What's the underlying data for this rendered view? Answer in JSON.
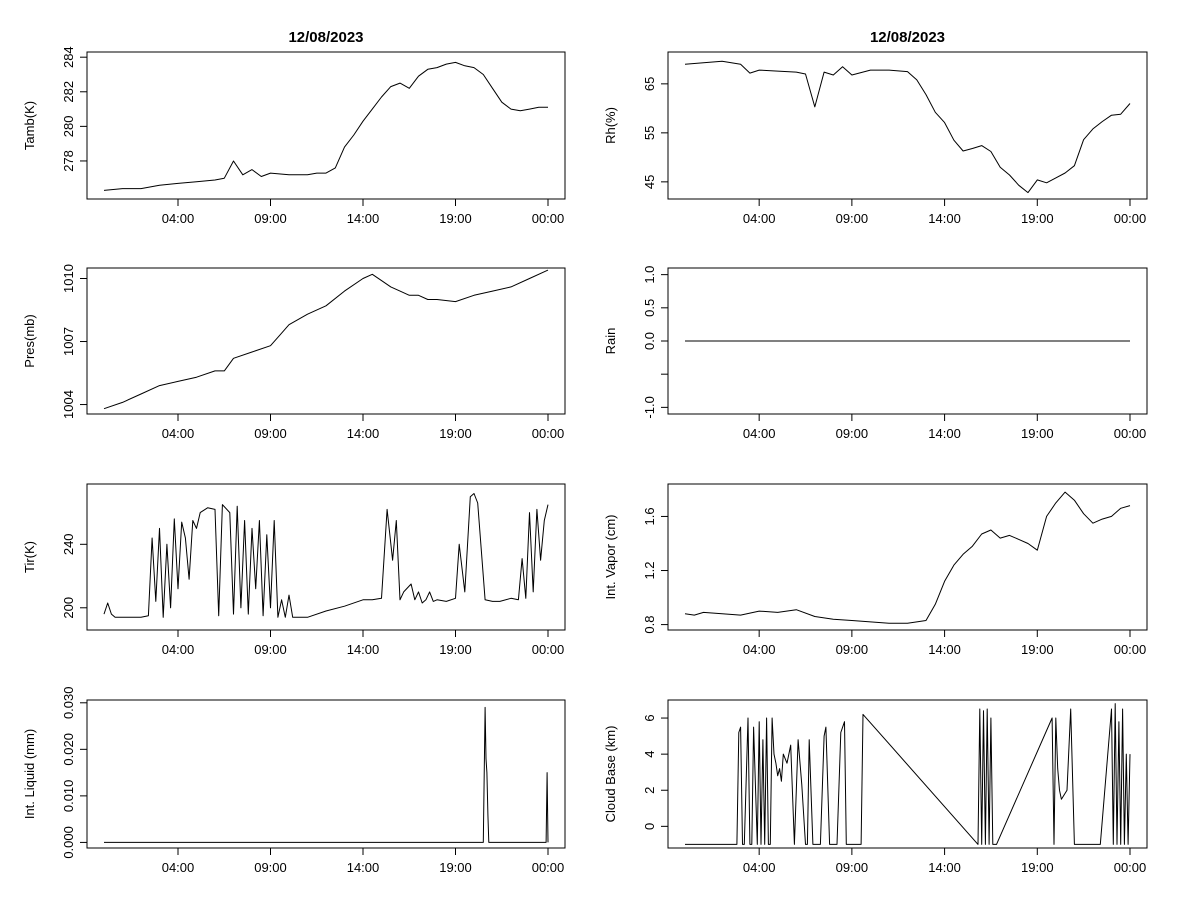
{
  "chart_data": [
    {
      "id": "tamb",
      "type": "line",
      "title": "12/08/2023",
      "ylabel": "Tamb(K)",
      "xlabel": "",
      "xlim": [
        0,
        24
      ],
      "ylim": [
        275.8,
        284.3
      ],
      "x_ticks": [
        4,
        9,
        14,
        19,
        24
      ],
      "x_tick_labels": [
        "04:00",
        "09:00",
        "14:00",
        "19:00",
        "00:00"
      ],
      "y_ticks": [
        278,
        280,
        282,
        284
      ],
      "y_tick_labels": [
        "278",
        "280",
        "282",
        "284"
      ],
      "series": [
        {
          "name": "Tamb",
          "x": [
            0,
            1,
            2,
            3,
            4,
            5,
            6,
            6.5,
            7,
            7.5,
            8,
            8.5,
            9,
            10,
            11,
            11.5,
            12,
            12.5,
            13,
            13.5,
            14,
            14.5,
            15,
            15.5,
            16,
            16.5,
            17,
            17.5,
            18,
            18.5,
            19,
            19.5,
            20,
            20.5,
            21,
            21.5,
            22,
            22.5,
            23,
            23.5,
            24
          ],
          "y": [
            276.3,
            276.4,
            276.4,
            276.6,
            276.7,
            276.8,
            276.9,
            277.0,
            278.0,
            277.2,
            277.5,
            277.1,
            277.3,
            277.2,
            277.2,
            277.3,
            277.3,
            277.6,
            278.8,
            279.5,
            280.3,
            281.0,
            281.7,
            282.3,
            282.5,
            282.2,
            282.9,
            283.3,
            283.4,
            283.6,
            283.7,
            283.5,
            283.4,
            283.0,
            282.2,
            281.4,
            281.0,
            280.9,
            281.0,
            281.1,
            281.1
          ]
        }
      ]
    },
    {
      "id": "rh",
      "type": "line",
      "title": "12/08/2023",
      "ylabel": "Rh(%)",
      "xlabel": "",
      "xlim": [
        0,
        24
      ],
      "ylim": [
        41.5,
        71.5
      ],
      "x_ticks": [
        4,
        9,
        14,
        19,
        24
      ],
      "x_tick_labels": [
        "04:00",
        "09:00",
        "14:00",
        "19:00",
        "00:00"
      ],
      "y_ticks": [
        45,
        55,
        65
      ],
      "y_tick_labels": [
        "45",
        "55",
        "65"
      ],
      "series": [
        {
          "name": "Rh",
          "x": [
            0,
            1,
            2,
            3,
            3.5,
            4,
            5,
            6,
            6.5,
            7,
            7.5,
            8,
            8.5,
            9,
            10,
            11,
            12,
            12.5,
            13,
            13.5,
            14,
            14.5,
            15,
            15.5,
            16,
            16.5,
            17,
            17.5,
            18,
            18.5,
            19,
            19.5,
            20,
            20.5,
            21,
            21.5,
            22,
            22.5,
            23,
            23.5,
            24
          ],
          "y": [
            69.0,
            69.3,
            69.6,
            69.0,
            67.2,
            67.8,
            67.6,
            67.4,
            67.0,
            60.3,
            67.4,
            66.8,
            68.5,
            66.8,
            67.8,
            67.8,
            67.5,
            65.8,
            62.8,
            59.2,
            57.1,
            53.5,
            51.3,
            51.8,
            52.4,
            51.2,
            48.0,
            46.4,
            44.3,
            42.8,
            45.4,
            44.8,
            45.8,
            46.8,
            48.3,
            53.6,
            55.8,
            57.3,
            58.6,
            58.8,
            61.0
          ]
        }
      ]
    },
    {
      "id": "pres",
      "type": "line",
      "title": "",
      "ylabel": "Pres(mb)",
      "xlabel": "",
      "xlim": [
        0,
        24
      ],
      "ylim": [
        1003.55,
        1010.5
      ],
      "x_ticks": [
        4,
        9,
        14,
        19,
        24
      ],
      "x_tick_labels": [
        "04:00",
        "09:00",
        "14:00",
        "19:00",
        "00:00"
      ],
      "y_ticks": [
        1004,
        1007,
        1010
      ],
      "y_tick_labels": [
        "1004",
        "1007",
        "1010"
      ],
      "series": [
        {
          "name": "Pres",
          "x": [
            0,
            1,
            2,
            3,
            4,
            5,
            6,
            6.5,
            7,
            8,
            9,
            9.5,
            10,
            11,
            12,
            13,
            14,
            14.5,
            15,
            15.5,
            16,
            16.5,
            17,
            17.5,
            18,
            19,
            20,
            21,
            22,
            23,
            24
          ],
          "y": [
            1003.8,
            1004.1,
            1004.5,
            1004.9,
            1005.1,
            1005.3,
            1005.6,
            1005.6,
            1006.2,
            1006.5,
            1006.8,
            1007.3,
            1007.8,
            1008.3,
            1008.7,
            1009.4,
            1010.0,
            1010.2,
            1009.9,
            1009.6,
            1009.4,
            1009.2,
            1009.2,
            1009.0,
            1009.0,
            1008.9,
            1009.2,
            1009.4,
            1009.6,
            1010.0,
            1010.4
          ]
        }
      ]
    },
    {
      "id": "rain",
      "type": "line",
      "title": "",
      "ylabel": "Rain",
      "xlabel": "",
      "xlim": [
        0,
        24
      ],
      "ylim": [
        -1.1,
        1.1
      ],
      "x_ticks": [
        4,
        9,
        14,
        19,
        24
      ],
      "x_tick_labels": [
        "04:00",
        "09:00",
        "14:00",
        "19:00",
        "00:00"
      ],
      "y_ticks": [
        -1.0,
        -0.5,
        0.0,
        0.5,
        1.0
      ],
      "y_tick_labels": [
        "-1.0",
        "",
        "0.0",
        "0.5",
        "1.0"
      ],
      "series": [
        {
          "name": "Rain",
          "x": [
            0,
            24
          ],
          "y": [
            0,
            0
          ]
        }
      ]
    },
    {
      "id": "tir",
      "type": "line",
      "title": "",
      "ylabel": "Tir(K)",
      "xlabel": "",
      "xlim": [
        0,
        24
      ],
      "ylim": [
        186,
        278
      ],
      "x_ticks": [
        4,
        9,
        14,
        19,
        24
      ],
      "x_tick_labels": [
        "04:00",
        "09:00",
        "14:00",
        "19:00",
        "00:00"
      ],
      "y_ticks": [
        200,
        240
      ],
      "y_tick_labels": [
        "200",
        "240"
      ],
      "series": [
        {
          "name": "Tir",
          "x": [
            0,
            0.2,
            0.4,
            0.6,
            1,
            2,
            2.4,
            2.6,
            2.8,
            3.0,
            3.2,
            3.4,
            3.6,
            3.8,
            4.0,
            4.2,
            4.4,
            4.6,
            4.8,
            5.0,
            5.2,
            5.6,
            6.0,
            6.2,
            6.4,
            6.8,
            7.0,
            7.2,
            7.4,
            7.6,
            7.8,
            8.0,
            8.2,
            8.4,
            8.6,
            8.8,
            9.0,
            9.2,
            9.4,
            9.6,
            9.8,
            10.0,
            10.2,
            10.6,
            11,
            12,
            13,
            14,
            14.5,
            15,
            15.3,
            15.6,
            15.8,
            16.0,
            16.2,
            16.6,
            16.8,
            17.0,
            17.2,
            17.4,
            17.6,
            17.8,
            18,
            18.5,
            19,
            19.2,
            19.5,
            19.8,
            20,
            20.2,
            20.6,
            21,
            21.4,
            22,
            22.4,
            22.6,
            22.8,
            23.0,
            23.2,
            23.4,
            23.6,
            23.8,
            24
          ],
          "y": [
            196,
            203,
            196,
            194,
            194,
            194,
            195,
            244,
            204,
            250,
            194,
            240,
            200,
            256,
            212,
            254,
            244,
            218,
            255,
            250,
            260,
            263,
            262,
            195,
            265,
            260,
            196,
            264,
            200,
            255,
            196,
            250,
            212,
            255,
            195,
            246,
            200,
            255,
            194,
            205,
            194,
            208,
            194,
            194,
            194,
            198,
            201,
            205,
            205,
            206,
            262,
            230,
            255,
            205,
            210,
            215,
            205,
            210,
            203,
            205,
            210,
            204,
            205,
            204,
            206,
            240,
            210,
            270,
            272,
            266,
            205,
            204,
            204,
            206,
            205,
            231,
            206,
            260,
            210,
            262,
            230,
            255,
            265
          ]
        }
      ]
    },
    {
      "id": "vapor",
      "type": "line",
      "title": "",
      "ylabel": "Int. Vapor (cm)",
      "xlabel": "",
      "xlim": [
        0,
        24
      ],
      "ylim": [
        0.76,
        1.84
      ],
      "x_ticks": [
        4,
        9,
        14,
        19,
        24
      ],
      "x_tick_labels": [
        "04:00",
        "09:00",
        "14:00",
        "19:00",
        "00:00"
      ],
      "y_ticks": [
        0.8,
        1.2,
        1.6
      ],
      "y_tick_labels": [
        "0.8",
        "1.2",
        "1.6"
      ],
      "series": [
        {
          "name": "Int. Vapor",
          "x": [
            0,
            0.5,
            1,
            2,
            3,
            4,
            5,
            6,
            7,
            8,
            9,
            10,
            11,
            12,
            12.5,
            13,
            13.5,
            14,
            14.5,
            15,
            15.5,
            16,
            16.5,
            17,
            17.5,
            18,
            18.5,
            19,
            19.5,
            20,
            20.5,
            21,
            21.5,
            22,
            22.5,
            23,
            23.5,
            24
          ],
          "y": [
            0.88,
            0.87,
            0.89,
            0.88,
            0.87,
            0.9,
            0.89,
            0.91,
            0.86,
            0.84,
            0.83,
            0.82,
            0.81,
            0.81,
            0.82,
            0.83,
            0.95,
            1.12,
            1.24,
            1.32,
            1.38,
            1.47,
            1.5,
            1.44,
            1.46,
            1.43,
            1.4,
            1.35,
            1.6,
            1.7,
            1.78,
            1.72,
            1.62,
            1.55,
            1.58,
            1.6,
            1.66,
            1.68
          ]
        }
      ]
    },
    {
      "id": "liquid",
      "type": "line",
      "title": "",
      "ylabel": "Int. Liquid (mm)",
      "xlabel": "",
      "xlim": [
        0,
        24
      ],
      "ylim": [
        -0.0012,
        0.0306
      ],
      "x_ticks": [
        4,
        9,
        14,
        19,
        24
      ],
      "x_tick_labels": [
        "04:00",
        "09:00",
        "14:00",
        "19:00",
        "00:00"
      ],
      "y_ticks": [
        0.0,
        0.01,
        0.02,
        0.03
      ],
      "y_tick_labels": [
        "0.000",
        "0.010",
        "0.020",
        "0.030"
      ],
      "series": [
        {
          "name": "Int. Liquid",
          "x": [
            0,
            20.5,
            20.6,
            20.65,
            20.7,
            20.75,
            20.8,
            21,
            23.9,
            23.95,
            24
          ],
          "y": [
            0,
            0,
            0.029,
            0.018,
            0.015,
            0.006,
            0,
            0,
            0,
            0.015,
            0
          ]
        }
      ]
    },
    {
      "id": "cloudbase",
      "type": "line",
      "title": "",
      "ylabel": "Cloud Base (km)",
      "xlabel": "",
      "xlim": [
        0,
        24
      ],
      "ylim": [
        -1.2,
        7.0
      ],
      "x_ticks": [
        4,
        9,
        14,
        19,
        24
      ],
      "x_tick_labels": [
        "04:00",
        "09:00",
        "14:00",
        "19:00",
        "00:00"
      ],
      "y_ticks": [
        0,
        2,
        4,
        6
      ],
      "y_tick_labels": [
        "0",
        "2",
        "4",
        "6"
      ],
      "series": [
        {
          "name": "Cloud Base",
          "x": [
            0,
            2.8,
            2.9,
            3.0,
            3.1,
            3.2,
            3.4,
            3.5,
            3.6,
            3.7,
            3.9,
            4.0,
            4.1,
            4.2,
            4.3,
            4.4,
            4.5,
            4.6,
            4.7,
            4.8,
            4.9,
            5.0,
            5.1,
            5.2,
            5.3,
            5.5,
            5.7,
            5.9,
            6.1,
            6.3,
            6.5,
            6.6,
            6.7,
            6.9,
            7.1,
            7.2,
            7.3,
            7.5,
            7.6,
            7.8,
            8.0,
            8.1,
            8.2,
            8.4,
            8.6,
            8.7,
            8.8,
            8.9,
            9.0,
            9.1,
            9.2,
            9.4,
            9.5,
            9.6,
            15.8,
            15.9,
            16.0,
            16.1,
            16.2,
            16.3,
            16.4,
            16.5,
            16.6,
            16.7,
            16.8,
            19.8,
            19.9,
            20.0,
            20.1,
            20.2,
            20.3,
            20.6,
            20.8,
            21.0,
            21.1,
            21.2,
            21.4,
            22.4,
            23.0,
            23.1,
            23.2,
            23.3,
            23.4,
            23.5,
            23.6,
            23.7,
            23.8,
            23.9,
            24
          ],
          "y": [
            -1,
            -1,
            5.2,
            5.5,
            -1,
            -1,
            6.0,
            -1,
            -1,
            5.5,
            -1,
            5.8,
            -1,
            4.8,
            -1,
            6.0,
            -1,
            -1,
            6.0,
            4.0,
            3.5,
            2.8,
            3.2,
            2.5,
            4.0,
            3.5,
            4.5,
            -1,
            4.8,
            2.3,
            -1,
            -1,
            4.8,
            -1,
            -1,
            -1,
            -1,
            5.0,
            5.5,
            -1,
            -1,
            -1,
            -1,
            5.2,
            5.8,
            -1,
            -1,
            -1,
            -1,
            -1,
            -1,
            -1,
            -1,
            6.2,
            -1,
            6.5,
            -1,
            6.4,
            -1,
            6.5,
            -1,
            6.0,
            -1,
            -1,
            -1,
            6.0,
            -1,
            6.0,
            3.2,
            2.0,
            1.5,
            2.0,
            6.5,
            -1,
            -1,
            -1,
            -1,
            -1,
            6.5,
            -1,
            6.8,
            -1,
            5.8,
            -1,
            6.5,
            -1,
            4.0,
            -1,
            4.0
          ]
        }
      ]
    }
  ]
}
